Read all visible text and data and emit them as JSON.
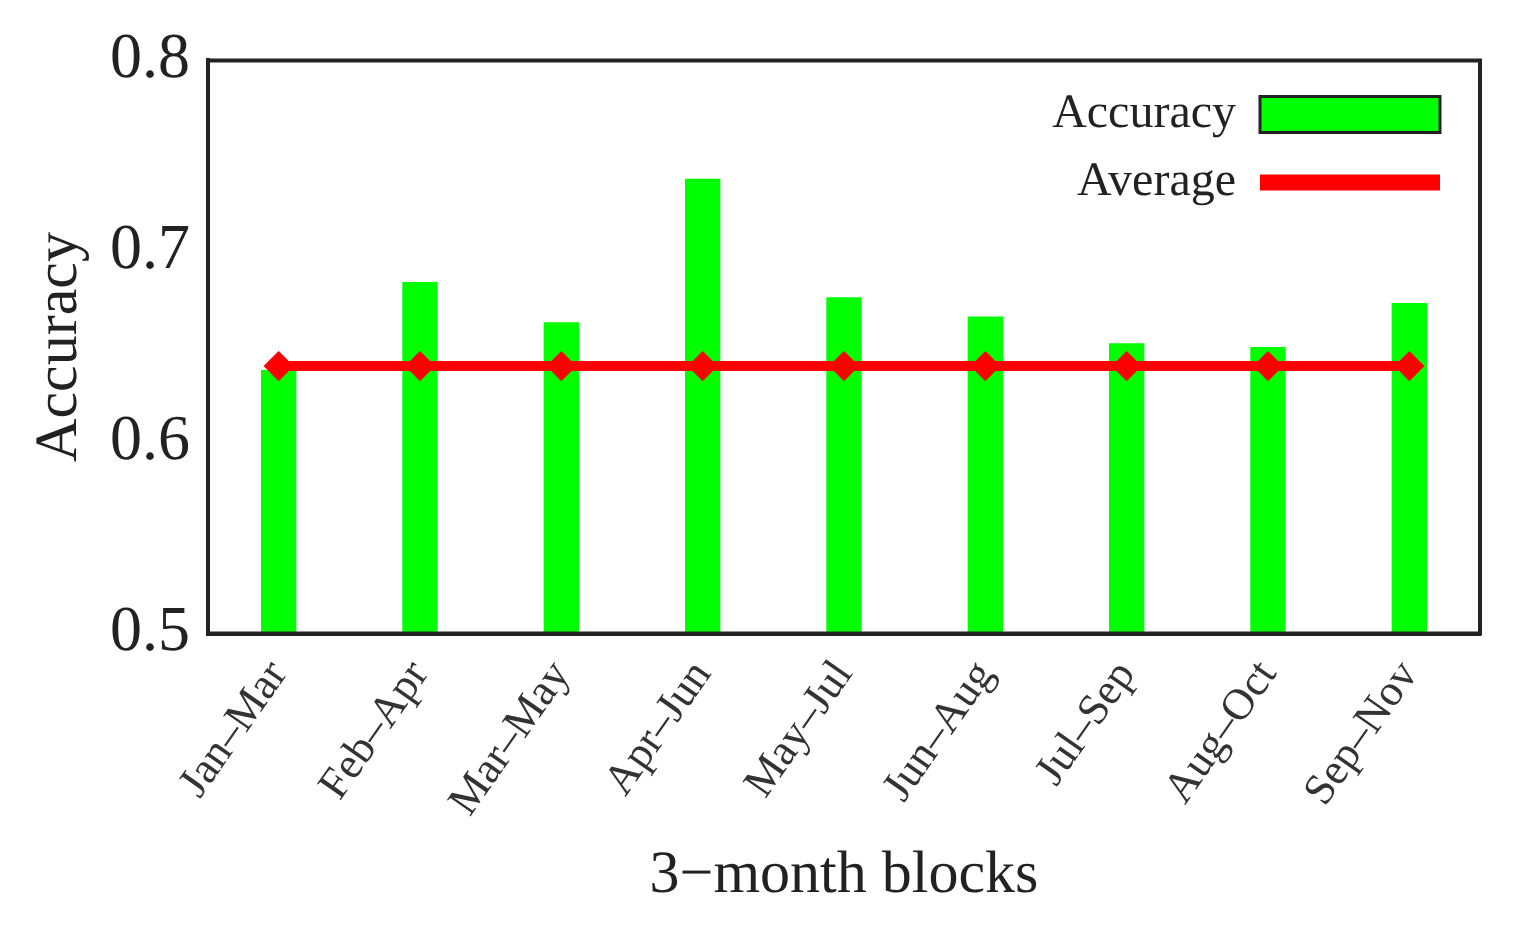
{
  "chart_data": {
    "type": "bar",
    "xlabel": "3−month blocks",
    "ylabel": "Accuracy",
    "categories": [
      "Jan–Mar",
      "Feb–Apr",
      "Mar–May",
      "Apr–Jun",
      "May–Jul",
      "Jun–Aug",
      "Jul–Sep",
      "Aug–Oct",
      "Sep–Nov"
    ],
    "series": [
      {
        "name": "Accuracy",
        "color": "#00ff00",
        "values": [
          0.638,
          0.684,
          0.663,
          0.738,
          0.676,
          0.666,
          0.652,
          0.65,
          0.673
        ]
      },
      {
        "name": "Average",
        "type": "line",
        "color": "#ff0000",
        "marker": "diamond",
        "values": [
          0.64,
          0.64,
          0.64,
          0.64,
          0.64,
          0.64,
          0.64,
          0.64,
          0.64
        ]
      }
    ],
    "ylim": [
      0.5,
      0.8
    ],
    "yticks": [
      0.5,
      0.6,
      0.7,
      0.8
    ],
    "grid": false,
    "legend": "top right"
  }
}
